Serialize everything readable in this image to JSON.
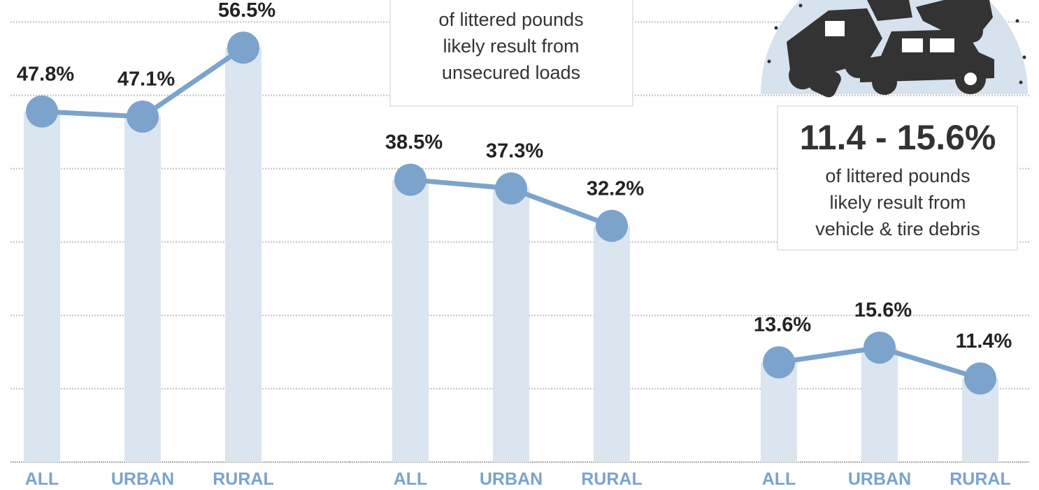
{
  "chart_data": [
    {
      "type": "line",
      "categories": [
        "ALL",
        "URBAN",
        "RURAL"
      ],
      "values": [
        47.8,
        47.1,
        56.5
      ],
      "value_labels": [
        "47.8%",
        "47.1%",
        "56.5%"
      ],
      "color": "#7ba3cc",
      "bar_color": "#dbe5f0",
      "ylim": [
        0,
        63
      ],
      "yticks": [
        0,
        10,
        20,
        30,
        40,
        50,
        60
      ],
      "grid": true
    },
    {
      "type": "line",
      "categories": [
        "ALL",
        "URBAN",
        "RURAL"
      ],
      "values": [
        38.5,
        37.3,
        32.2
      ],
      "value_labels": [
        "38.5%",
        "37.3%",
        "32.2%"
      ],
      "color": "#7ba3cc",
      "bar_color": "#dbe5f0",
      "ylim": [
        0,
        63
      ],
      "yticks": [
        0,
        10,
        20,
        30,
        40,
        50,
        60
      ],
      "grid": true,
      "annotation": {
        "lines": [
          "of littered pounds",
          "likely result from",
          "unsecured loads"
        ]
      }
    },
    {
      "type": "line",
      "categories": [
        "ALL",
        "URBAN",
        "RURAL"
      ],
      "values": [
        13.6,
        15.6,
        11.4
      ],
      "value_labels": [
        "13.6%",
        "15.6%",
        "11.4%"
      ],
      "color": "#7ba3cc",
      "bar_color": "#dbe5f0",
      "ylim": [
        0,
        63
      ],
      "yticks": [
        0,
        10,
        20,
        30,
        40,
        50,
        60
      ],
      "grid": true,
      "annotation": {
        "headline": "11.4 - 15.6%",
        "lines": [
          "of littered pounds",
          "likely result from",
          "vehicle & tire debris"
        ]
      }
    }
  ]
}
